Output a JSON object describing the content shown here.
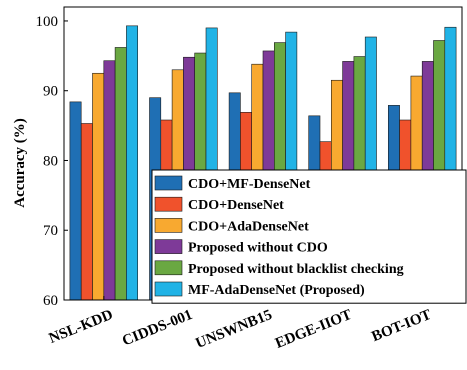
{
  "chart_data": {
    "type": "bar",
    "title": "",
    "xlabel": "",
    "ylabel": "Accuracy (%)",
    "ylim": [
      60,
      102
    ],
    "yticks": [
      "60",
      "70",
      "80",
      "90",
      "100"
    ],
    "grid": false,
    "legend_position": "bottom-right",
    "categories": [
      "NSL-KDD",
      "CIDDS-001",
      "UNSWNB15",
      "EDGE-IIOT",
      "BOT-IOT"
    ],
    "series": [
      {
        "name": "CDO+MF-DenseNet",
        "color": "#1f6fb4",
        "values": [
          88.4,
          89.0,
          89.7,
          86.4,
          87.9
        ]
      },
      {
        "name": "CDO+DenseNet",
        "color": "#f0522c",
        "values": [
          85.3,
          85.8,
          86.9,
          82.7,
          85.8
        ]
      },
      {
        "name": "CDO+AdaDenseNet",
        "color": "#f8a930",
        "values": [
          92.5,
          93.0,
          93.8,
          91.5,
          92.1
        ]
      },
      {
        "name": "Proposed without CDO",
        "color": "#7e3a98",
        "values": [
          94.3,
          94.8,
          95.7,
          94.2,
          94.2
        ]
      },
      {
        "name": "Proposed without blacklist checking",
        "color": "#6aa842",
        "values": [
          96.2,
          95.4,
          96.9,
          94.9,
          97.2
        ]
      },
      {
        "name": "MF-AdaDenseNet (Proposed)",
        "color": "#21b3e6",
        "values": [
          99.3,
          99.0,
          98.4,
          97.7,
          99.1
        ]
      }
    ]
  }
}
